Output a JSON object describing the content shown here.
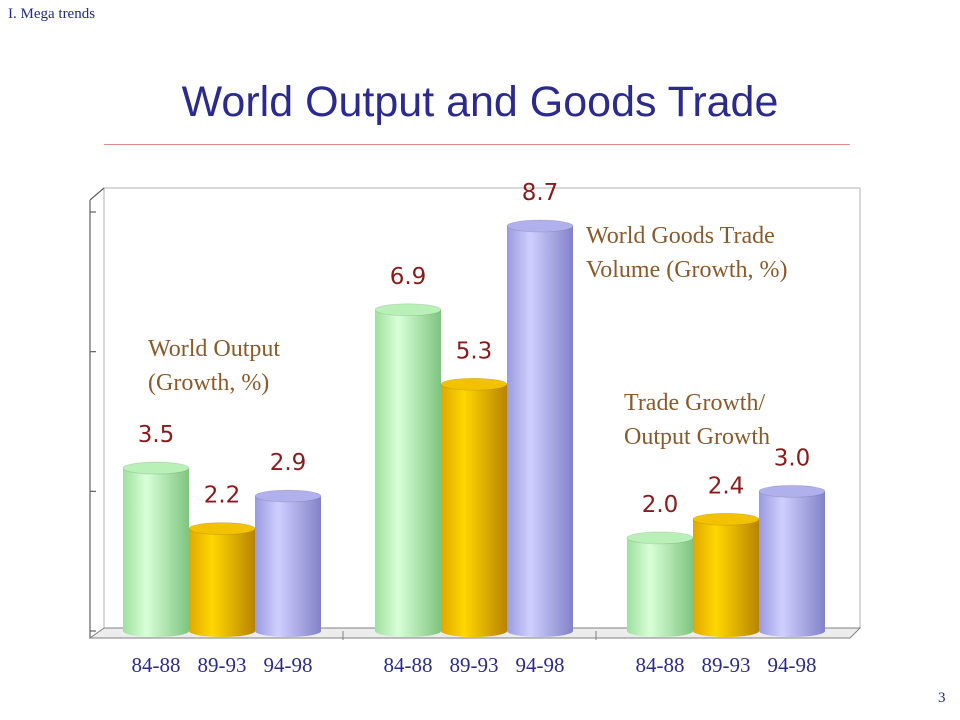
{
  "header": {
    "section": "I. Mega trends",
    "title": "World Output and Goods Trade",
    "page_number": "3"
  },
  "chart_data": {
    "type": "bar",
    "title": "World Output and Goods Trade",
    "ylim": [
      0,
      9
    ],
    "grid": false,
    "groups": [
      {
        "annotation": [
          "World Output",
          "(Growth, %)"
        ],
        "categories": [
          "84-88",
          "89-93",
          "94-98"
        ],
        "values": [
          3.5,
          2.2,
          2.9
        ],
        "labels": [
          "3.5",
          "2.2",
          "2.9"
        ]
      },
      {
        "annotation": [
          "World Goods Trade",
          "Volume (Growth, %)"
        ],
        "categories": [
          "84-88",
          "89-93",
          "94-98"
        ],
        "values": [
          6.9,
          5.3,
          8.7
        ],
        "labels": [
          "6.9",
          "5.3",
          "8.7"
        ]
      },
      {
        "annotation": [
          "Trade Growth/",
          "Output Growth"
        ],
        "categories": [
          "84-88",
          "89-93",
          "94-98"
        ],
        "values": [
          2.0,
          2.4,
          3.0
        ],
        "labels": [
          "2.0",
          "2.4",
          "3.0"
        ]
      }
    ],
    "bar_colors": [
      "#b8f0b8",
      "#f2c200",
      "#b0b0ec"
    ]
  }
}
